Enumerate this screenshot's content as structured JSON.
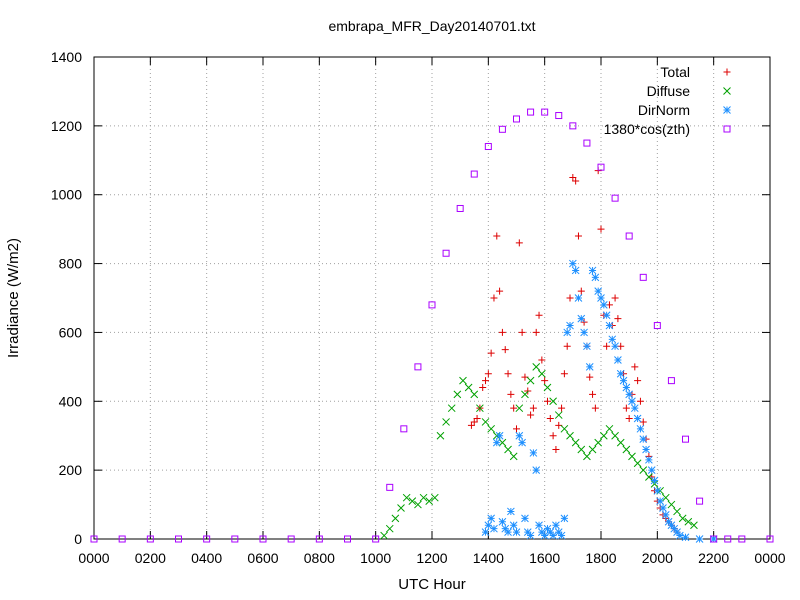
{
  "chart_data": {
    "type": "scatter",
    "title": "embrapa_MFR_Day20140701.txt",
    "xlabel": "UTC Hour",
    "ylabel": "Irradiance (W/m2)",
    "xlim": [
      0,
      24
    ],
    "ylim": [
      0,
      1400
    ],
    "x_tick_labels": [
      "0000",
      "0200",
      "0400",
      "0600",
      "0800",
      "1000",
      "1200",
      "1400",
      "1600",
      "1800",
      "2000",
      "2200",
      "0000"
    ],
    "y_tick_labels": [
      "0",
      "200",
      "400",
      "600",
      "800",
      "1000",
      "1200",
      "1400"
    ],
    "grid": true,
    "legend_position": "top-right",
    "series": [
      {
        "name": "Total",
        "color": "#dd0000",
        "marker": "plus",
        "points": [
          [
            13.4,
            330
          ],
          [
            13.5,
            340
          ],
          [
            13.6,
            350
          ],
          [
            13.7,
            380
          ],
          [
            13.8,
            440
          ],
          [
            13.9,
            460
          ],
          [
            14.0,
            480
          ],
          [
            14.1,
            540
          ],
          [
            14.2,
            700
          ],
          [
            14.3,
            880
          ],
          [
            14.4,
            720
          ],
          [
            14.5,
            600
          ],
          [
            14.6,
            550
          ],
          [
            14.7,
            480
          ],
          [
            14.8,
            420
          ],
          [
            14.9,
            380
          ],
          [
            15.0,
            320
          ],
          [
            15.1,
            860
          ],
          [
            15.2,
            600
          ],
          [
            15.3,
            470
          ],
          [
            15.4,
            430
          ],
          [
            15.5,
            360
          ],
          [
            15.6,
            380
          ],
          [
            15.7,
            600
          ],
          [
            15.8,
            650
          ],
          [
            15.9,
            520
          ],
          [
            16.0,
            460
          ],
          [
            16.1,
            400
          ],
          [
            16.2,
            350
          ],
          [
            16.3,
            300
          ],
          [
            16.4,
            260
          ],
          [
            16.5,
            330
          ],
          [
            16.6,
            380
          ],
          [
            16.7,
            480
          ],
          [
            16.8,
            560
          ],
          [
            16.9,
            700
          ],
          [
            17.0,
            1050
          ],
          [
            17.1,
            1040
          ],
          [
            17.2,
            880
          ],
          [
            17.3,
            720
          ],
          [
            17.4,
            630
          ],
          [
            17.5,
            560
          ],
          [
            17.6,
            470
          ],
          [
            17.7,
            420
          ],
          [
            17.8,
            380
          ],
          [
            17.9,
            1070
          ],
          [
            18.0,
            900
          ],
          [
            18.1,
            650
          ],
          [
            18.2,
            560
          ],
          [
            18.3,
            680
          ],
          [
            18.4,
            620
          ],
          [
            18.5,
            700
          ],
          [
            18.6,
            640
          ],
          [
            18.7,
            560
          ],
          [
            18.8,
            480
          ],
          [
            18.9,
            380
          ],
          [
            19.0,
            350
          ],
          [
            19.1,
            420
          ],
          [
            19.2,
            500
          ],
          [
            19.3,
            460
          ],
          [
            19.4,
            400
          ],
          [
            19.5,
            340
          ],
          [
            19.6,
            290
          ],
          [
            19.7,
            240
          ],
          [
            19.8,
            180
          ],
          [
            19.9,
            140
          ],
          [
            20.0,
            110
          ],
          [
            20.1,
            90
          ],
          [
            20.2,
            70
          ],
          [
            20.3,
            60
          ],
          [
            20.4,
            50
          ],
          [
            20.5,
            40
          ],
          [
            20.6,
            30
          ],
          [
            20.7,
            20
          ]
        ]
      },
      {
        "name": "Diffuse",
        "color": "#00a000",
        "marker": "cross",
        "points": [
          [
            10.3,
            10
          ],
          [
            10.5,
            30
          ],
          [
            10.7,
            60
          ],
          [
            10.9,
            90
          ],
          [
            11.1,
            120
          ],
          [
            11.3,
            110
          ],
          [
            11.5,
            100
          ],
          [
            11.7,
            120
          ],
          [
            11.9,
            110
          ],
          [
            12.1,
            120
          ],
          [
            12.3,
            300
          ],
          [
            12.5,
            340
          ],
          [
            12.7,
            380
          ],
          [
            12.9,
            420
          ],
          [
            13.1,
            460
          ],
          [
            13.3,
            440
          ],
          [
            13.5,
            420
          ],
          [
            13.7,
            380
          ],
          [
            13.9,
            340
          ],
          [
            14.1,
            320
          ],
          [
            14.3,
            300
          ],
          [
            14.5,
            280
          ],
          [
            14.7,
            260
          ],
          [
            14.9,
            240
          ],
          [
            15.1,
            380
          ],
          [
            15.3,
            420
          ],
          [
            15.5,
            460
          ],
          [
            15.7,
            500
          ],
          [
            15.9,
            480
          ],
          [
            16.1,
            440
          ],
          [
            16.3,
            400
          ],
          [
            16.5,
            360
          ],
          [
            16.7,
            320
          ],
          [
            16.9,
            300
          ],
          [
            17.1,
            280
          ],
          [
            17.3,
            260
          ],
          [
            17.5,
            240
          ],
          [
            17.7,
            260
          ],
          [
            17.9,
            280
          ],
          [
            18.1,
            300
          ],
          [
            18.3,
            320
          ],
          [
            18.5,
            300
          ],
          [
            18.7,
            280
          ],
          [
            18.9,
            260
          ],
          [
            19.1,
            240
          ],
          [
            19.3,
            220
          ],
          [
            19.5,
            200
          ],
          [
            19.7,
            180
          ],
          [
            19.9,
            160
          ],
          [
            20.1,
            140
          ],
          [
            20.3,
            120
          ],
          [
            20.5,
            100
          ],
          [
            20.7,
            80
          ],
          [
            20.9,
            60
          ],
          [
            21.1,
            50
          ],
          [
            21.3,
            40
          ]
        ]
      },
      {
        "name": "DirNorm",
        "color": "#1e90ff",
        "marker": "star",
        "points": [
          [
            13.9,
            20
          ],
          [
            14.0,
            40
          ],
          [
            14.1,
            60
          ],
          [
            14.2,
            30
          ],
          [
            14.3,
            280
          ],
          [
            14.4,
            300
          ],
          [
            14.5,
            50
          ],
          [
            14.6,
            30
          ],
          [
            14.7,
            20
          ],
          [
            14.8,
            80
          ],
          [
            14.9,
            40
          ],
          [
            15.0,
            20
          ],
          [
            15.1,
            300
          ],
          [
            15.2,
            280
          ],
          [
            15.3,
            60
          ],
          [
            15.4,
            20
          ],
          [
            15.5,
            10
          ],
          [
            15.6,
            250
          ],
          [
            15.7,
            200
          ],
          [
            15.8,
            40
          ],
          [
            15.9,
            20
          ],
          [
            16.0,
            10
          ],
          [
            16.1,
            30
          ],
          [
            16.2,
            20
          ],
          [
            16.3,
            10
          ],
          [
            16.4,
            40
          ],
          [
            16.5,
            20
          ],
          [
            16.6,
            10
          ],
          [
            16.7,
            60
          ],
          [
            16.8,
            600
          ],
          [
            16.9,
            620
          ],
          [
            17.0,
            800
          ],
          [
            17.1,
            780
          ],
          [
            17.2,
            700
          ],
          [
            17.3,
            640
          ],
          [
            17.4,
            600
          ],
          [
            17.5,
            560
          ],
          [
            17.6,
            500
          ],
          [
            17.7,
            780
          ],
          [
            17.8,
            760
          ],
          [
            17.9,
            720
          ],
          [
            18.0,
            700
          ],
          [
            18.1,
            680
          ],
          [
            18.2,
            650
          ],
          [
            18.3,
            620
          ],
          [
            18.4,
            580
          ],
          [
            18.5,
            560
          ],
          [
            18.6,
            520
          ],
          [
            18.7,
            480
          ],
          [
            18.8,
            460
          ],
          [
            18.9,
            440
          ],
          [
            19.0,
            420
          ],
          [
            19.1,
            400
          ],
          [
            19.2,
            380
          ],
          [
            19.3,
            350
          ],
          [
            19.4,
            320
          ],
          [
            19.5,
            290
          ],
          [
            19.6,
            260
          ],
          [
            19.7,
            230
          ],
          [
            19.8,
            200
          ],
          [
            19.9,
            170
          ],
          [
            20.0,
            140
          ],
          [
            20.1,
            110
          ],
          [
            20.2,
            90
          ],
          [
            20.3,
            70
          ],
          [
            20.4,
            50
          ],
          [
            20.5,
            40
          ],
          [
            20.6,
            30
          ],
          [
            20.7,
            20
          ],
          [
            20.8,
            10
          ],
          [
            21.0,
            5
          ],
          [
            21.5,
            0
          ],
          [
            22.0,
            0
          ]
        ]
      },
      {
        "name": "1380*cos(zth)",
        "color": "#aa00ff",
        "marker": "square",
        "points": [
          [
            0,
            0
          ],
          [
            1,
            0
          ],
          [
            2,
            0
          ],
          [
            3,
            0
          ],
          [
            4,
            0
          ],
          [
            5,
            0
          ],
          [
            6,
            0
          ],
          [
            7,
            0
          ],
          [
            8,
            0
          ],
          [
            9,
            0
          ],
          [
            10,
            0
          ],
          [
            10.5,
            150
          ],
          [
            11.0,
            320
          ],
          [
            11.5,
            500
          ],
          [
            12.0,
            680
          ],
          [
            12.5,
            830
          ],
          [
            13.0,
            960
          ],
          [
            13.5,
            1060
          ],
          [
            14.0,
            1140
          ],
          [
            14.5,
            1190
          ],
          [
            15.0,
            1220
          ],
          [
            15.5,
            1240
          ],
          [
            16.0,
            1240
          ],
          [
            16.5,
            1230
          ],
          [
            17.0,
            1200
          ],
          [
            17.5,
            1150
          ],
          [
            18.0,
            1080
          ],
          [
            18.5,
            990
          ],
          [
            19.0,
            880
          ],
          [
            19.5,
            760
          ],
          [
            20.0,
            620
          ],
          [
            20.5,
            460
          ],
          [
            21.0,
            290
          ],
          [
            21.5,
            110
          ],
          [
            22.0,
            0
          ],
          [
            22.5,
            0
          ],
          [
            23,
            0
          ],
          [
            24,
            0
          ]
        ]
      }
    ]
  }
}
